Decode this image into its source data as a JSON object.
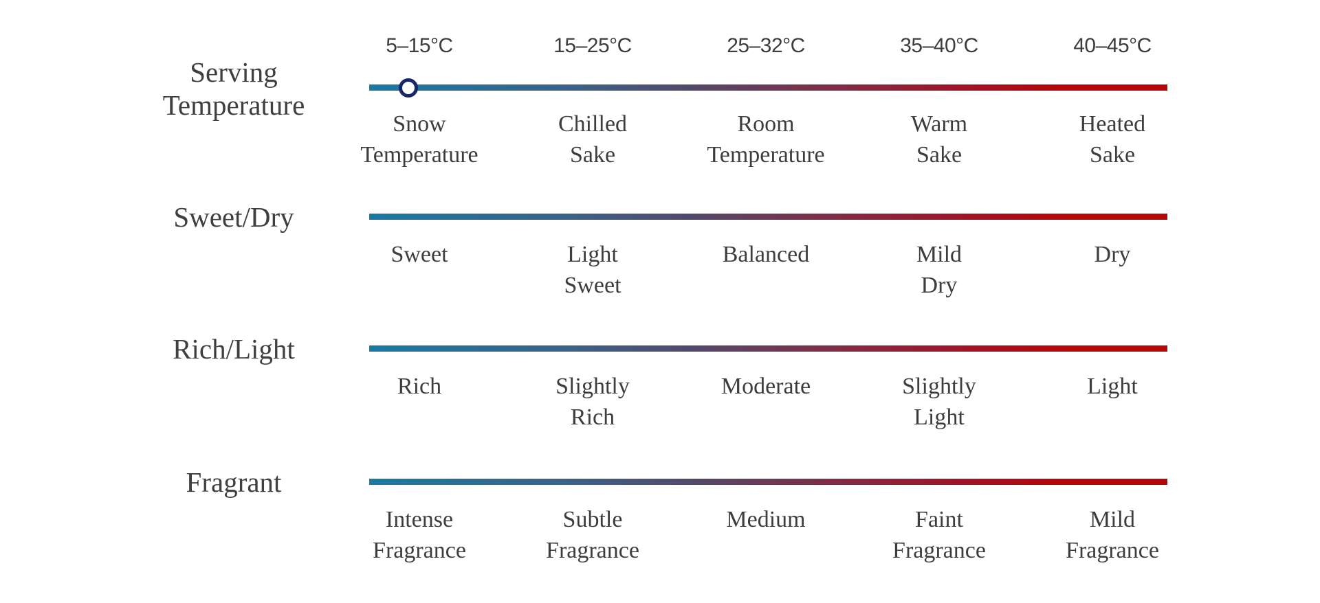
{
  "chart_data": {
    "type": "table",
    "description_layout": "four horizontal gradient scales (cool teal to warm red) each with five labeled positions",
    "gradient_colors": [
      "#1879A3",
      "#564668",
      "#B80505"
    ],
    "text_color": "#3D3D3D",
    "marker": {
      "row": "Serving Temperature",
      "at_label": "Snow Temperature",
      "at_range": "5–15°C",
      "position_percent": 5,
      "fill": "#FFFFFF",
      "border_color": "#15266B"
    },
    "rows": [
      {
        "label": "Serving\nTemperature",
        "top_labels": [
          "5–15°C",
          "15–25°C",
          "25–32°C",
          "35–40°C",
          "40–45°C"
        ],
        "bottom_labels": [
          "Snow\nTemperature",
          "Chilled\nSake",
          "Room\nTemperature",
          "Warm\nSake",
          "Heated\nSake"
        ]
      },
      {
        "label": "Sweet/Dry",
        "bottom_labels": [
          "Sweet",
          "Light\nSweet",
          "Balanced",
          "Mild\nDry",
          "Dry"
        ]
      },
      {
        "label": "Rich/Light",
        "bottom_labels": [
          "Rich",
          "Slightly\nRich",
          "Moderate",
          "Slightly\nLight",
          "Light"
        ]
      },
      {
        "label": "Fragrant",
        "bottom_labels": [
          "Intense\nFragrance",
          "Subtle\nFragrance",
          "Medium",
          "Faint\nFragrance",
          "Mild\nFragrance"
        ]
      }
    ]
  }
}
